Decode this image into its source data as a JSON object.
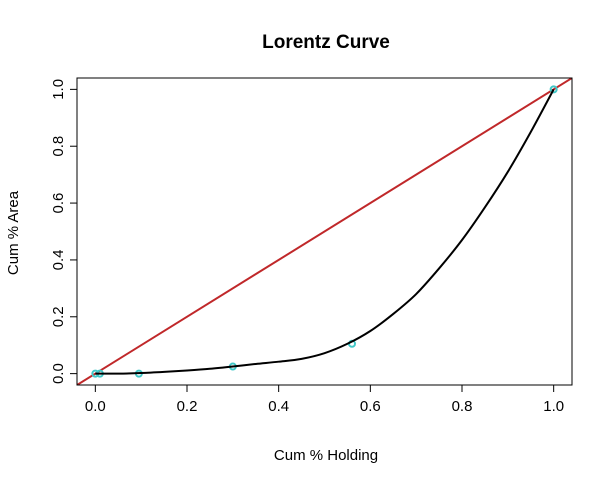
{
  "chart_data": {
    "type": "line",
    "title": "Lorentz Curve",
    "xlabel": "Cum % Holding",
    "ylabel": "Cum % Area",
    "xlim": [
      -0.04,
      1.04
    ],
    "ylim": [
      -0.04,
      1.04
    ],
    "x_ticks": [
      0.0,
      0.2,
      0.4,
      0.6,
      0.8,
      1.0
    ],
    "x_tick_labels": [
      "0.0",
      "0.2",
      "0.4",
      "0.6",
      "0.8",
      "1.0"
    ],
    "y_ticks": [
      0.0,
      0.2,
      0.4,
      0.6,
      0.8,
      1.0
    ],
    "y_tick_labels": [
      "0.0",
      "0.2",
      "0.4",
      "0.6",
      "0.8",
      "1.0"
    ],
    "grid": false,
    "legend": "none",
    "points": {
      "x": [
        0.0,
        0.01,
        0.095,
        0.3,
        0.56,
        1.0
      ],
      "y": [
        0.0,
        0.0,
        0.0,
        0.025,
        0.105,
        1.0
      ],
      "color": "#40c8c8"
    },
    "curve": {
      "x": [
        0.0,
        0.05,
        0.1,
        0.15,
        0.2,
        0.25,
        0.3,
        0.35,
        0.4,
        0.45,
        0.5,
        0.55,
        0.6,
        0.65,
        0.7,
        0.75,
        0.8,
        0.85,
        0.9,
        0.95,
        1.0
      ],
      "y": [
        0.0,
        0.0,
        0.002,
        0.006,
        0.011,
        0.017,
        0.025,
        0.034,
        0.042,
        0.052,
        0.072,
        0.105,
        0.15,
        0.21,
        0.28,
        0.37,
        0.47,
        0.585,
        0.71,
        0.85,
        1.0
      ],
      "color": "#000000"
    },
    "equality_line": {
      "x": [
        -0.04,
        1.04
      ],
      "y": [
        -0.04,
        1.04
      ],
      "color": "#c0282a"
    }
  }
}
